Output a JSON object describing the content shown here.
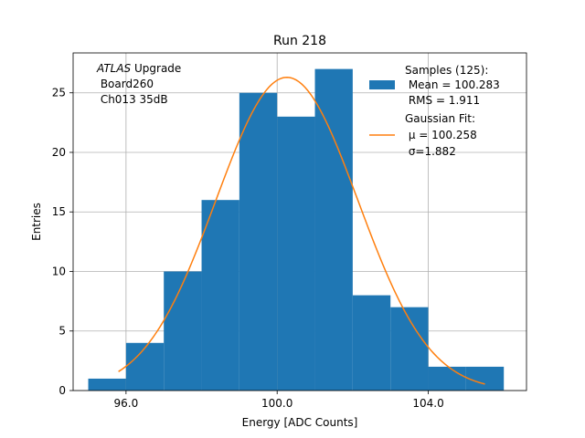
{
  "chart_data": {
    "type": "bar",
    "title": "Run 218",
    "xlabel": "Energy [ADC Counts]",
    "ylabel": "Entries",
    "xlim": [
      94.6,
      106.6
    ],
    "ylim": [
      0,
      28.35
    ],
    "x_ticks": [
      96.0,
      100.0,
      104.0
    ],
    "x_tick_labels": [
      "96.0",
      "100.0",
      "104.0"
    ],
    "y_ticks": [
      0,
      5,
      10,
      15,
      20,
      25
    ],
    "y_tick_labels": [
      "0",
      "5",
      "10",
      "15",
      "20",
      "25"
    ],
    "grid": true,
    "bin_edges": [
      95,
      96,
      97,
      98,
      99,
      100,
      101,
      102,
      103,
      104,
      105,
      106
    ],
    "counts": [
      1,
      4,
      10,
      16,
      25,
      23,
      27,
      8,
      7,
      2,
      2
    ],
    "bar_color": "#1f77b4",
    "fit": {
      "type": "gaussian",
      "amplitude": 26.3,
      "mu": 100.258,
      "sigma": 1.882,
      "x_range": [
        95.8,
        105.5
      ],
      "color": "#ff7f0e"
    },
    "annotation_lines": [
      "ATLAS Upgrade",
      " Board260",
      " Ch013 35dB"
    ],
    "annotation_italic_word": "ATLAS",
    "annotation_rest_first_line": " Upgrade",
    "legend": {
      "position": "top-right",
      "hist_lines": [
        "Samples (125):",
        " Mean = 100.283",
        " RMS = 1.911"
      ],
      "fit_lines": [
        "Gaussian Fit:",
        " μ = 100.258",
        " σ=1.882"
      ]
    }
  }
}
